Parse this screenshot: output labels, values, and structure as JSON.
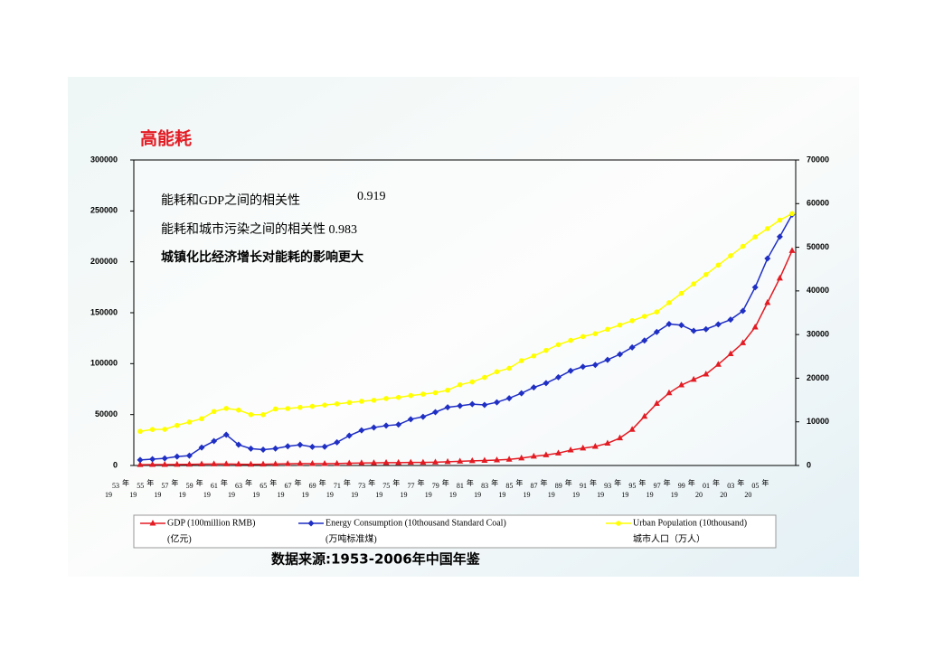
{
  "chart_data": {
    "type": "line",
    "title": "高能耗",
    "categories": [
      {
        "century": "19",
        "year": "53",
        "suffix": "年"
      },
      null,
      {
        "century": "19",
        "year": "55",
        "suffix": "年"
      },
      null,
      {
        "century": "19",
        "year": "57",
        "suffix": "年"
      },
      null,
      {
        "century": "19",
        "year": "59",
        "suffix": "年"
      },
      null,
      {
        "century": "19",
        "year": "61",
        "suffix": "年"
      },
      null,
      {
        "century": "19",
        "year": "63",
        "suffix": "年"
      },
      null,
      {
        "century": "19",
        "year": "65",
        "suffix": "年"
      },
      null,
      {
        "century": "19",
        "year": "67",
        "suffix": "年"
      },
      null,
      {
        "century": "19",
        "year": "69",
        "suffix": "年"
      },
      null,
      {
        "century": "19",
        "year": "71",
        "suffix": "年"
      },
      null,
      {
        "century": "19",
        "year": "73",
        "suffix": "年"
      },
      null,
      {
        "century": "19",
        "year": "75",
        "suffix": "年"
      },
      null,
      {
        "century": "19",
        "year": "77",
        "suffix": "年"
      },
      null,
      {
        "century": "19",
        "year": "79",
        "suffix": "年"
      },
      null,
      {
        "century": "19",
        "year": "81",
        "suffix": "年"
      },
      null,
      {
        "century": "19",
        "year": "83",
        "suffix": "年"
      },
      null,
      {
        "century": "19",
        "year": "85",
        "suffix": "年"
      },
      null,
      {
        "century": "19",
        "year": "87",
        "suffix": "年"
      },
      null,
      {
        "century": "19",
        "year": "89",
        "suffix": "年"
      },
      null,
      {
        "century": "19",
        "year": "91",
        "suffix": "年"
      },
      null,
      {
        "century": "19",
        "year": "93",
        "suffix": "年"
      },
      null,
      {
        "century": "19",
        "year": "95",
        "suffix": "年"
      },
      null,
      {
        "century": "19",
        "year": "97",
        "suffix": "年"
      },
      null,
      {
        "century": "19",
        "year": "99",
        "suffix": "年"
      },
      null,
      {
        "century": "20",
        "year": "01",
        "suffix": "年"
      },
      null,
      {
        "century": "20",
        "year": "03",
        "suffix": "年"
      },
      null,
      {
        "century": "20",
        "year": "05",
        "suffix": "年"
      },
      null
    ],
    "series": [
      {
        "name": "GDP (100million RMB)",
        "unit_label": "(亿元)",
        "color": "#e31b23",
        "marker": "triangle",
        "axis": "y",
        "values": [
          824,
          859,
          910,
          1028,
          1068,
          1307,
          1439,
          1457,
          1220,
          1149,
          1233,
          1454,
          1716,
          1868,
          1773,
          1723,
          1937,
          2252,
          2426,
          2518,
          2720,
          2789,
          2997,
          2943,
          3201,
          3645,
          4063,
          4546,
          4892,
          5323,
          5963,
          7208,
          9016,
          10275,
          12059,
          15043,
          16992,
          18668,
          21781,
          26923,
          35334,
          48198,
          60794,
          71177,
          78973,
          84402,
          89677,
          99215,
          109655,
          120333,
          135823,
          159878,
          183868,
          210871
        ]
      },
      {
        "name": "Energy Consumption  (10thousand Standard Coal)",
        "unit_label": "(万吨标准煤)",
        "color": "#1f2fc4",
        "marker": "diamond",
        "axis": "y",
        "values": [
          5411,
          6234,
          6968,
          8800,
          9644,
          17599,
          23926,
          30188,
          20390,
          16540,
          15567,
          16637,
          18901,
          20269,
          18328,
          18405,
          22730,
          29291,
          34496,
          37273,
          39109,
          40144,
          45425,
          47831,
          52354,
          57144,
          58588,
          60275,
          59447,
          62067,
          66040,
          70904,
          76682,
          80850,
          86632,
          92997,
          96934,
          98703,
          103783,
          109170,
          115993,
          122737,
          131176,
          138948,
          137798,
          132214,
          133831,
          138553,
          143199,
          151797,
          174990,
          203227,
          224682,
          246270
        ]
      },
      {
        "name": "Urban Population (10thousand)",
        "unit_label": "城市人口（万人）",
        "color": "#ffff00",
        "marker": "circle",
        "axis": "y2",
        "values": [
          7826,
          8249,
          8285,
          9185,
          9949,
          10721,
          12371,
          13073,
          12707,
          11659,
          11646,
          12950,
          13045,
          13313,
          13548,
          13838,
          14117,
          14424,
          14711,
          14935,
          15345,
          15595,
          16030,
          16341,
          16669,
          17245,
          18495,
          19140,
          20171,
          21480,
          22274,
          24017,
          25094,
          26366,
          27674,
          28661,
          29540,
          30195,
          31203,
          32175,
          33173,
          34169,
          35174,
          37304,
          39449,
          41608,
          43748,
          45906,
          48064,
          50212,
          52376,
          54283,
          56212,
          57706
        ]
      }
    ],
    "ylim": [
      0,
      300000
    ],
    "yticks": [
      0,
      50000,
      100000,
      150000,
      200000,
      250000,
      300000
    ],
    "y2lim": [
      0,
      70000
    ],
    "y2ticks": [
      0,
      10000,
      20000,
      30000,
      40000,
      50000,
      60000,
      70000
    ],
    "annotations": [
      "能耗和GDP之间的相关性",
      "0.919",
      "能耗和城市污染之间的相关性 0.983",
      "城镇化比经济增长对能耗的影响更大"
    ],
    "source": "数据来源:1953-2006年中国年鉴"
  }
}
